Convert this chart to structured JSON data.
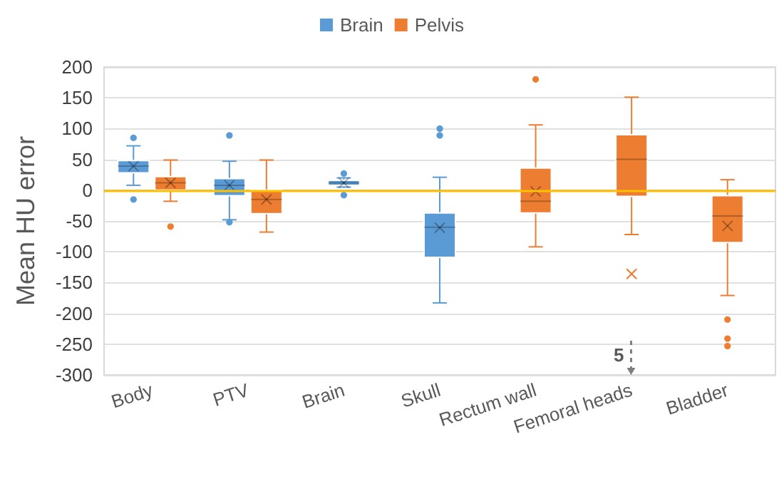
{
  "chart_data": {
    "type": "box",
    "ylabel": "Mean HU error",
    "categories": [
      "Body",
      "PTV",
      "Brain",
      "Skull",
      "Rectum wall",
      "Femoral heads",
      "Bladder"
    ],
    "series": [
      {
        "name": "Brain",
        "color": "#5b9bd5",
        "boxes": [
          {
            "low": 8,
            "q1": 28,
            "median": 39,
            "q3": 48,
            "high": 72,
            "mean": 39,
            "outliers": [
              85,
              -15
            ]
          },
          {
            "low": -48,
            "q1": -9,
            "median": 8,
            "q3": 19,
            "high": 47,
            "mean": 8,
            "outliers": [
              89,
              -52
            ]
          },
          {
            "low": 5,
            "q1": 8,
            "median": 12,
            "q3": 16,
            "high": 20,
            "mean": 12,
            "outliers": [
              27,
              -8
            ]
          },
          {
            "low": -183,
            "q1": -109,
            "median": -60,
            "q3": -37,
            "high": 21,
            "mean": -61,
            "outliers": [
              100,
              89
            ]
          },
          null,
          null,
          null
        ]
      },
      {
        "name": "Pelvis",
        "color": "#ed7d31",
        "boxes": [
          {
            "low": -18,
            "q1": 0,
            "median": 12,
            "q3": 22,
            "high": 49,
            "mean": 12,
            "outliers": [
              -59
            ]
          },
          {
            "low": -68,
            "q1": -38,
            "median": -15,
            "q3": 0,
            "high": 49,
            "mean": -15
          },
          null,
          null,
          {
            "low": -92,
            "q1": -37,
            "median": -18,
            "q3": 36,
            "high": 106,
            "mean": -2,
            "outliers": [
              180
            ]
          },
          {
            "low": -72,
            "q1": -10,
            "median": 50,
            "q3": 90,
            "high": 151,
            "mean": -136
          },
          {
            "low": -171,
            "q1": -85,
            "median": -42,
            "q3": -9,
            "high": 17,
            "mean": -58,
            "outliers": [
              -210,
              -241,
              -253
            ]
          }
        ]
      }
    ],
    "ylim": [
      -300,
      200
    ],
    "yticks": [
      -300,
      -250,
      -200,
      -150,
      -100,
      -50,
      0,
      50,
      100,
      150,
      200
    ],
    "grid": "y",
    "legend": "top",
    "ref_lines": [
      {
        "axis": "y",
        "value": 0,
        "color": "#ffc000"
      }
    ],
    "annotations": [
      "5"
    ]
  }
}
